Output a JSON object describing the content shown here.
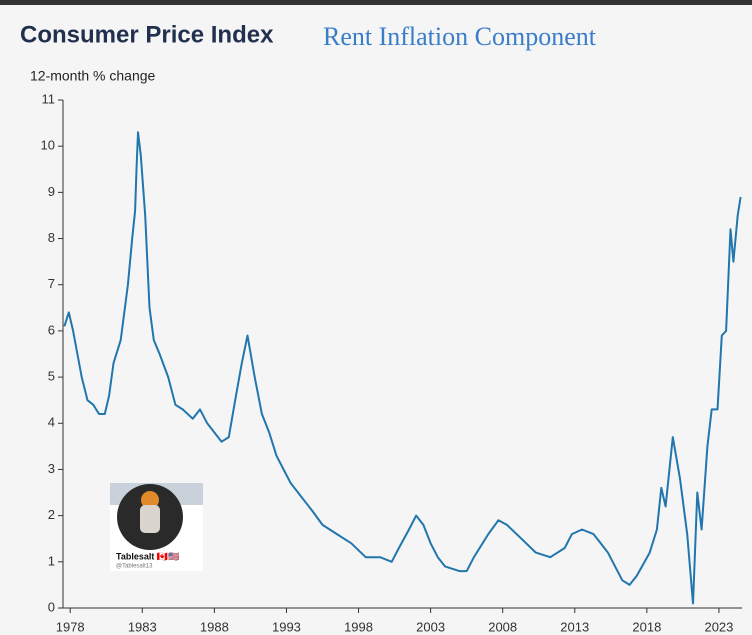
{
  "chart_data": {
    "type": "line",
    "title": "Consumer Price Index",
    "subtitle": "Rent Inflation Component",
    "y_label": "12-month % change",
    "watermark": {
      "name": "Tablesalt 🇨🇦🇺🇸",
      "handle": "@Tablesalt13"
    },
    "x": [
      1977.6,
      1977.9,
      1978.2,
      1978.5,
      1978.8,
      1979.2,
      1979.6,
      1980.0,
      1980.4,
      1980.7,
      1981.0,
      1981.5,
      1982.0,
      1982.3,
      1982.5,
      1982.6,
      1982.7,
      1982.9,
      1983.2,
      1983.5,
      1983.8,
      1984.2,
      1984.8,
      1985.3,
      1985.8,
      1986.5,
      1987.0,
      1987.5,
      1988.0,
      1988.5,
      1989.0,
      1989.5,
      1989.9,
      1990.3,
      1990.8,
      1991.3,
      1991.8,
      1992.3,
      1992.8,
      1993.3,
      1993.8,
      1994.3,
      1994.8,
      1995.5,
      1996.5,
      1997.5,
      1998.5,
      1999.5,
      2000.3,
      2000.8,
      2001.5,
      2002.0,
      2002.5,
      2003.0,
      2003.5,
      2004.0,
      2005.0,
      2005.5,
      2006.0,
      2007.0,
      2007.7,
      2008.3,
      2009.3,
      2010.3,
      2011.3,
      2012.3,
      2012.8,
      2013.5,
      2014.3,
      2014.8,
      2015.3,
      2016.3,
      2016.8,
      2017.3,
      2018.2,
      2018.7,
      2019.0,
      2019.3,
      2019.8,
      2020.3,
      2020.8,
      2021.2,
      2021.5,
      2021.8,
      2022.2,
      2022.5,
      2022.9,
      2023.2,
      2023.5,
      2023.8,
      2024.0,
      2024.3,
      2024.5
    ],
    "values": [
      6.1,
      6.4,
      6.0,
      5.5,
      5.0,
      4.5,
      4.4,
      4.2,
      4.2,
      4.6,
      5.3,
      5.8,
      7.0,
      8.0,
      8.6,
      9.5,
      10.3,
      9.8,
      8.5,
      6.5,
      5.8,
      5.5,
      5.0,
      4.4,
      4.3,
      4.1,
      4.3,
      4.0,
      3.8,
      3.6,
      3.7,
      4.6,
      5.3,
      5.9,
      5.0,
      4.2,
      3.8,
      3.3,
      3.0,
      2.7,
      2.5,
      2.3,
      2.1,
      1.8,
      1.6,
      1.4,
      1.1,
      1.1,
      1.0,
      1.3,
      1.7,
      2.0,
      1.8,
      1.4,
      1.1,
      0.9,
      0.8,
      0.8,
      1.1,
      1.6,
      1.9,
      1.8,
      1.5,
      1.2,
      1.1,
      1.3,
      1.6,
      1.7,
      1.6,
      1.4,
      1.2,
      0.6,
      0.5,
      0.7,
      1.2,
      1.7,
      2.6,
      2.2,
      3.7,
      2.8,
      1.6,
      0.1,
      2.5,
      1.7,
      3.5,
      4.3,
      4.3,
      5.9,
      6.0,
      8.2,
      7.5,
      8.5,
      8.9
    ],
    "color": "#2176ae",
    "xlim": [
      1977.5,
      2024.6
    ],
    "ylim": [
      0,
      11
    ],
    "xticks": [
      1978,
      1983,
      1988,
      1993,
      1998,
      2003,
      2008,
      2013,
      2018,
      2023
    ],
    "yticks": [
      0,
      1,
      2,
      3,
      4,
      5,
      6,
      7,
      8,
      9,
      10,
      11
    ]
  }
}
